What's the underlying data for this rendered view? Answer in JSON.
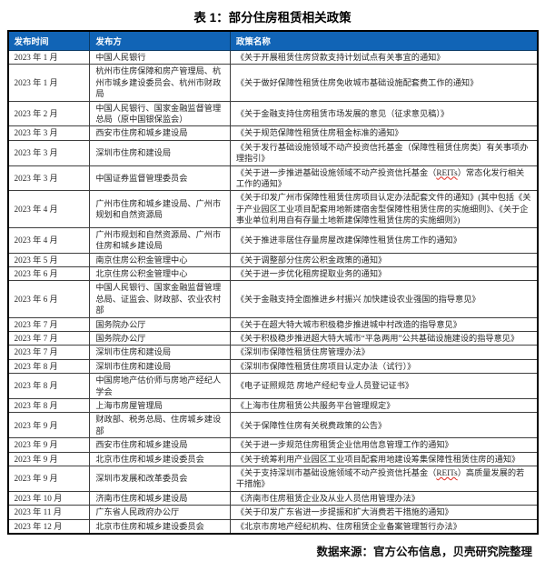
{
  "title": "表 1：部分住房租赁相关政策",
  "colors": {
    "header_bg": "#1164b6",
    "header_text": "#ffffff",
    "outer_border": "#000000",
    "inner_border": "#3f3f3f",
    "body_text": "#262626",
    "spellcheck_wavy": "#e0281e"
  },
  "table": {
    "headers": [
      "发布时间",
      "发布方",
      "政策名称"
    ],
    "rows": [
      {
        "date": "2023 年 1 月",
        "publisher": "中国人民银行",
        "policy": "《关于开展租赁住房贷款支持计划试点有关事宜的通知》"
      },
      {
        "date": "2023 年 1 月",
        "publisher": "杭州市住房保障和房产管理局、杭州市城乡建设委员会、杭州市财政局",
        "policy": "《关于做好保障性租赁住房免收城市基础设施配套费工作的通知》"
      },
      {
        "date": "2023 年 2 月",
        "publisher": "中国人民银行、国家金融监督管理总局（原中国银保监会）",
        "policy": "《关于金融支持住房租赁市场发展的意见（征求意见稿）》"
      },
      {
        "date": "2023 年 3 月",
        "publisher": "西安市住房和城乡建设局",
        "policy": "《关于规范保障性租赁住房租金标准的通知》"
      },
      {
        "date": "2023 年 3 月",
        "publisher": "深圳市住房和建设局",
        "policy": "《关于发行基础设施领域不动产投资信托基金（保障性租赁住房类）有关事项办理指引》"
      },
      {
        "date": "2023 年 3 月",
        "publisher": "中国证券监督管理委员会",
        "policy": "《关于进一步推进基础设施领域不动产投资信托基金（REITs）常态化发行相关工作的通知》"
      },
      {
        "date": "2023 年 4 月",
        "publisher": "广州市住房和城乡建设局、广州市规划和自然资源局",
        "policy": "《关于印发广州市保障性租赁住房项目认定办法配套文件的通知》(其中包括《关于产业园区工业项目配套用地新建宿舍型保障性租赁住房的实施细则》、《关于企事业单位利用自有存量土地新建保障性租赁住房的实施细则》)"
      },
      {
        "date": "2023 年 4 月",
        "publisher": "广州市规划和自然资源局、广州市住房和城乡建设局",
        "policy": "《关于推进非居住存量房屋改建保障性租赁住房工作的通知》"
      },
      {
        "date": "2023 年 5 月",
        "publisher": "南京住房公积金管理中心",
        "policy": "《关于调整部分住房公积金政策的通知》"
      },
      {
        "date": "2023 年 6 月",
        "publisher": "北京住房公积金管理中心",
        "policy": "《关于进一步优化租房提取业务的通知》"
      },
      {
        "date": "2023 年 6 月",
        "publisher": "中国人民银行、国家金融监督管理总局、证监会、财政部、农业农村部",
        "policy": "《关于金融支持全面推进乡村振兴 加快建设农业强国的指导意见》"
      },
      {
        "date": "2023 年 7 月",
        "publisher": "国务院办公厅",
        "policy": "《关于在超大特大城市积极稳步推进城中村改造的指导意见》"
      },
      {
        "date": "2023 年 7 月",
        "publisher": "国务院办公厅",
        "policy": "《关于积极稳步推进超大特大城市“平急两用”公共基础设施建设的指导意见》"
      },
      {
        "date": "2023 年 7 月",
        "publisher": "深圳市住房和建设局",
        "policy": "《深圳市保障性租赁住房管理办法》"
      },
      {
        "date": "2023 年 8 月",
        "publisher": "深圳市住房和建设局",
        "policy": "《深圳市保障性租赁住房项目认定办法（试行）》"
      },
      {
        "date": "2023 年 8 月",
        "publisher": "中国房地产估价师与房地产经纪人学会",
        "policy": "《电子证照规范 房地产经纪专业人员登记证书》"
      },
      {
        "date": "2023 年 8 月",
        "publisher": "上海市房屋管理局",
        "policy": "《上海市住房租赁公共服务平台管理规定》"
      },
      {
        "date": "2023 年 9 月",
        "publisher": "财政部、税务总局、住房城乡建设部",
        "policy": "《关于保障性住房有关税费政策的公告》"
      },
      {
        "date": "2023 年 9 月",
        "publisher": "西安市住房和城乡建设局",
        "policy": "《关于进一步规范住房租赁企业信用信息管理工作的通知》"
      },
      {
        "date": "2023 年 9 月",
        "publisher": "北京市住房和城乡建设委员会",
        "policy": "《关于统筹利用产业园区工业项目配套用地建设筹集保障性租赁住房的通知》"
      },
      {
        "date": "2023 年 9 月",
        "publisher": "深圳市发展和改革委员会",
        "policy": "《关于支持深圳市基础设施领域不动产投资信托基金（REITs）高质量发展的若干措施》"
      },
      {
        "date": "2023 年 10 月",
        "publisher": "济南市住房和城乡建设局",
        "policy": "《济南市住房租赁企业及从业人员信用管理办法》"
      },
      {
        "date": "2023 年 11 月",
        "publisher": "广东省人民政府办公厅",
        "policy": "《关于印发广东省进一步提振和扩大消费若干措施的通知》"
      },
      {
        "date": "2023 年 12 月",
        "publisher": "北京市住房和城乡建设委员会",
        "policy": "《北京市房地产经纪机构、住房租赁企业备案管理暂行办法》"
      }
    ]
  },
  "footer": {
    "source": "数据来源：官方公布信息，贝壳研究院整理"
  }
}
